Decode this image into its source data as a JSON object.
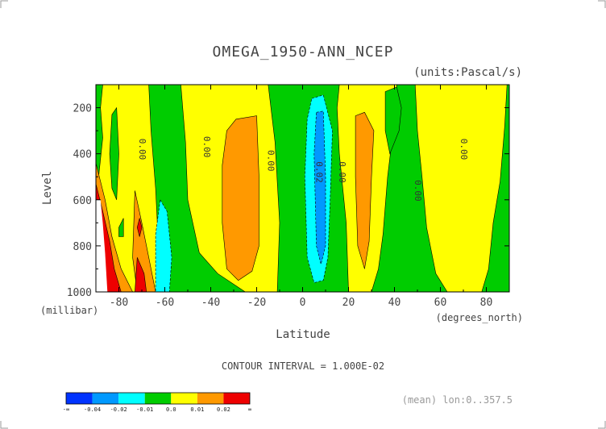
{
  "chart_data": {
    "type": "heatmap",
    "title": "OMEGA_1950-ANN_NCEP",
    "units_label": "(units:Pascal/s)",
    "ylabel": "Level",
    "ylabel_units": "(millibar)",
    "xlabel": "Latitude",
    "xlabel_units": "(degrees_north)",
    "contour_interval_text": "CONTOUR INTERVAL = 1.000E-02",
    "footnote": "(mean) lon:0..357.5",
    "xlim": [
      -90,
      90
    ],
    "ylim": [
      1000,
      100
    ],
    "x_ticks": [
      -80,
      -60,
      -40,
      -20,
      0,
      20,
      40,
      60,
      80
    ],
    "x_tick_labels": [
      "-80",
      "-60",
      "-40",
      "-20",
      "0",
      "20",
      "40",
      "60",
      "80"
    ],
    "y_ticks": [
      200,
      400,
      600,
      800,
      1000
    ],
    "y_tick_labels": [
      "200",
      "400",
      "600",
      "800",
      "1000"
    ],
    "contour_labels": [
      {
        "text": "0.00",
        "lat": -70,
        "lev": 380
      },
      {
        "text": "0.00",
        "lat": -42,
        "lev": 370
      },
      {
        "text": "0.00",
        "lat": -14,
        "lev": 430
      },
      {
        "text": "0.02",
        "lat": 7,
        "lev": 480
      },
      {
        "text": "0.00",
        "lat": 17,
        "lev": 480
      },
      {
        "text": "0.00",
        "lat": 50,
        "lev": 560
      },
      {
        "text": "0.00",
        "lat": 70,
        "lev": 380
      }
    ],
    "regions": [
      {
        "level": 0.0,
        "color": "#00cc00",
        "points": [
          [
            -90,
            100
          ],
          [
            90,
            100
          ],
          [
            90,
            1000
          ],
          [
            -90,
            1000
          ]
        ]
      },
      {
        "level": 0.01,
        "color": "#ffff00",
        "points": [
          [
            -87,
            100
          ],
          [
            -67,
            100
          ],
          [
            -66,
            300
          ],
          [
            -64,
            550
          ],
          [
            -63,
            750
          ],
          [
            -63,
            1000
          ],
          [
            -83,
            1000
          ],
          [
            -87,
            900
          ],
          [
            -89,
            720
          ],
          [
            -89,
            520
          ],
          [
            -87,
            330
          ],
          [
            -88,
            200
          ]
        ]
      },
      {
        "level": 0.01,
        "color": "#ffff00",
        "points": [
          [
            -53,
            100
          ],
          [
            -15,
            100
          ],
          [
            -12,
            350
          ],
          [
            -10,
            700
          ],
          [
            -11,
            1000
          ],
          [
            -25,
            1000
          ],
          [
            -37,
            920
          ],
          [
            -45,
            830
          ],
          [
            -50,
            600
          ],
          [
            -51,
            350
          ]
        ]
      },
      {
        "level": 0.01,
        "color": "#ffff00",
        "points": [
          [
            16,
            100
          ],
          [
            41,
            100
          ],
          [
            40,
            250
          ],
          [
            37,
            500
          ],
          [
            35,
            750
          ],
          [
            33,
            900
          ],
          [
            30,
            1000
          ],
          [
            20,
            1000
          ],
          [
            19,
            700
          ],
          [
            16,
            400
          ],
          [
            15,
            200
          ]
        ]
      },
      {
        "level": 0.01,
        "color": "#ffff00",
        "points": [
          [
            49,
            100
          ],
          [
            89,
            100
          ],
          [
            88,
            280
          ],
          [
            86,
            520
          ],
          [
            83,
            700
          ],
          [
            81,
            900
          ],
          [
            78,
            1000
          ],
          [
            63,
            1000
          ],
          [
            58,
            920
          ],
          [
            54,
            720
          ],
          [
            52,
            500
          ],
          [
            50,
            300
          ]
        ]
      },
      {
        "level": 0.02,
        "color": "#ff9900",
        "points": [
          [
            -90,
            440
          ],
          [
            -86,
            600
          ],
          [
            -83,
            760
          ],
          [
            -79,
            900
          ],
          [
            -74,
            1000
          ],
          [
            -90,
            1000
          ]
        ]
      },
      {
        "level": 0.02,
        "color": "#ff9900",
        "points": [
          [
            -73,
            560
          ],
          [
            -70,
            700
          ],
          [
            -67,
            850
          ],
          [
            -64,
            1000
          ],
          [
            -72,
            1000
          ],
          [
            -74,
            850
          ]
        ]
      },
      {
        "level": 0.02,
        "color": "#ff9900",
        "points": [
          [
            -33,
            300
          ],
          [
            -29,
            250
          ],
          [
            -20,
            235
          ],
          [
            -19,
            500
          ],
          [
            -19,
            800
          ],
          [
            -22,
            910
          ],
          [
            -28,
            950
          ],
          [
            -33,
            900
          ],
          [
            -35,
            700
          ],
          [
            -35,
            450
          ]
        ]
      },
      {
        "level": 0.02,
        "color": "#ff9900",
        "points": [
          [
            23,
            235
          ],
          [
            27,
            220
          ],
          [
            31,
            300
          ],
          [
            30,
            500
          ],
          [
            29,
            780
          ],
          [
            27,
            900
          ],
          [
            24,
            800
          ],
          [
            23,
            500
          ]
        ]
      },
      {
        "level": 0.03,
        "color": "#ee0000",
        "points": [
          [
            -90,
            530
          ],
          [
            -87,
            650
          ],
          [
            -84,
            780
          ],
          [
            -82,
            900
          ],
          [
            -79,
            1000
          ],
          [
            -90,
            1000
          ]
        ]
      },
      {
        "level": 0.03,
        "color": "#ee0000",
        "points": [
          [
            -72,
            850
          ],
          [
            -69,
            920
          ],
          [
            -68,
            1000
          ],
          [
            -73,
            1000
          ]
        ]
      },
      {
        "level": 0.03,
        "color": "#ee0000",
        "points": [
          [
            -71,
            680
          ],
          [
            -70,
            720
          ],
          [
            -71,
            760
          ],
          [
            -72,
            720
          ]
        ]
      },
      {
        "level": -0.01,
        "color": "#00ffff",
        "points": [
          [
            -62,
            600
          ],
          [
            -59,
            650
          ],
          [
            -57,
            850
          ],
          [
            -58,
            1000
          ],
          [
            -64,
            1000
          ],
          [
            -64,
            750
          ]
        ]
      },
      {
        "level": -0.01,
        "color": "#00ffff",
        "points": [
          [
            4,
            160
          ],
          [
            9,
            145
          ],
          [
            13,
            300
          ],
          [
            12,
            600
          ],
          [
            11,
            850
          ],
          [
            9,
            950
          ],
          [
            5,
            960
          ],
          [
            2,
            850
          ],
          [
            1,
            500
          ],
          [
            2,
            250
          ]
        ]
      },
      {
        "level": -0.02,
        "color": "#0099ff",
        "points": [
          [
            6,
            220
          ],
          [
            9,
            215
          ],
          [
            10,
            500
          ],
          [
            10,
            800
          ],
          [
            8,
            880
          ],
          [
            6,
            800
          ],
          [
            5,
            400
          ]
        ]
      },
      {
        "level": 0.0,
        "color": "#00cc00",
        "points": [
          [
            -83,
            230
          ],
          [
            -81,
            200
          ],
          [
            -80,
            400
          ],
          [
            -81,
            600
          ],
          [
            -83,
            550
          ],
          [
            -84,
            400
          ]
        ]
      },
      {
        "level": 0.0,
        "color": "#00cc00",
        "points": [
          [
            -80,
            720
          ],
          [
            -78,
            680
          ],
          [
            -78,
            760
          ],
          [
            -80,
            760
          ]
        ]
      },
      {
        "level": 0.0,
        "color": "#00cc00",
        "points": [
          [
            36,
            130
          ],
          [
            41,
            110
          ],
          [
            43,
            200
          ],
          [
            42,
            300
          ],
          [
            38,
            400
          ],
          [
            36,
            300
          ]
        ]
      }
    ],
    "missing": [
      {
        "points": [
          [
            -90,
            600
          ],
          [
            -88,
            600
          ],
          [
            -87,
            700
          ],
          [
            -86,
            830
          ],
          [
            -85,
            1000
          ],
          [
            -90,
            1000
          ]
        ]
      }
    ],
    "colorbar": {
      "colors": [
        "#0033ff",
        "#0099ff",
        "#00ffff",
        "#00cc00",
        "#ffff00",
        "#ff9900",
        "#ee0000"
      ],
      "labels": [
        "-∞",
        "-0.04",
        "-0.02",
        "-0.01",
        "0.0",
        "0.01",
        "0.02",
        "∞"
      ]
    }
  }
}
